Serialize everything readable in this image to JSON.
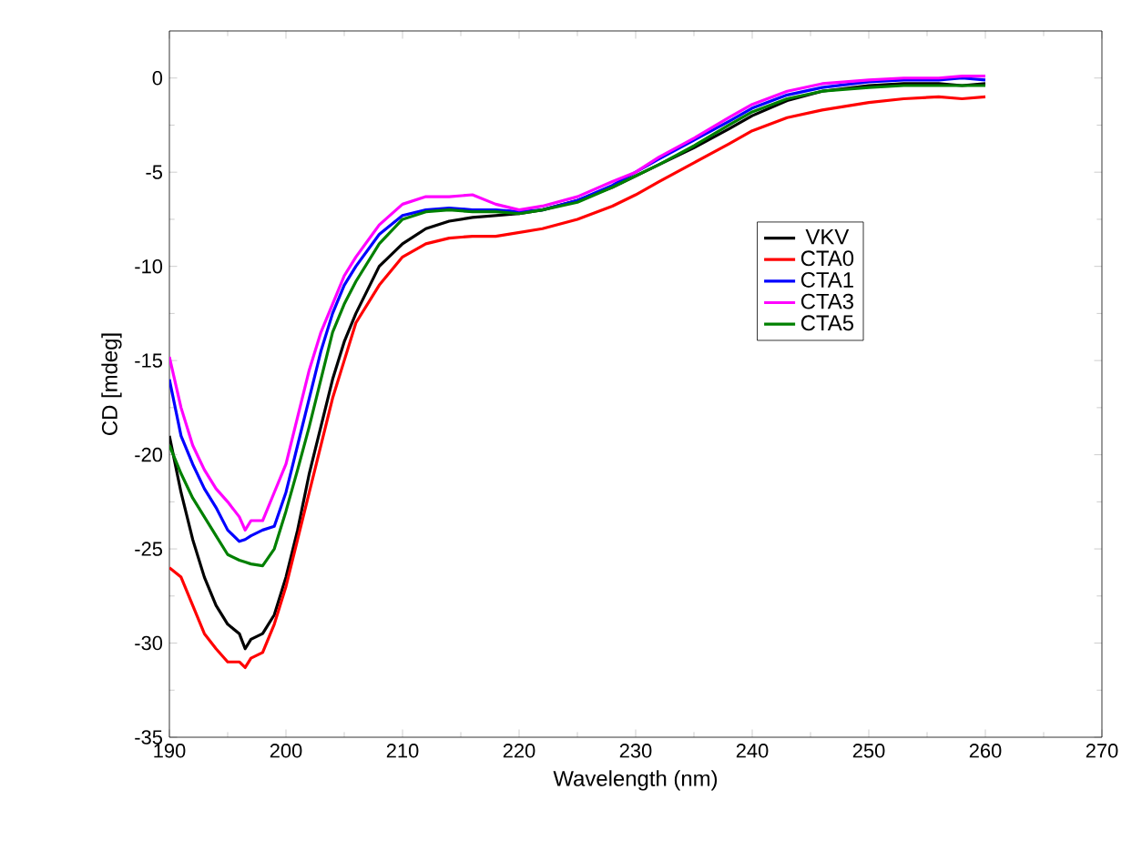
{
  "chart_data": {
    "type": "line",
    "xlabel": "Wavelength (nm)",
    "ylabel": "CD [mdeg]",
    "xlim": [
      190,
      270
    ],
    "ylim": [
      -35,
      2.5
    ],
    "xticks": [
      190,
      200,
      210,
      220,
      230,
      240,
      250,
      260,
      270
    ],
    "yticks": [
      -35,
      -30,
      -25,
      -20,
      -15,
      -10,
      -5,
      0
    ],
    "grid": false,
    "legend": "right",
    "marker": "none",
    "line_style": "solid",
    "x": [
      190,
      191,
      192,
      193,
      194,
      195,
      196,
      196.5,
      197,
      198,
      199,
      200,
      201,
      202,
      203,
      204,
      205,
      206,
      208,
      210,
      212,
      214,
      216,
      218,
      220,
      222,
      225,
      228,
      230,
      232,
      235,
      238,
      240,
      243,
      246,
      250,
      253,
      256,
      258,
      260
    ],
    "series": [
      {
        "name": "VKV",
        "color": "#000000",
        "values": [
          -19,
          -22,
          -24.5,
          -26.5,
          -28,
          -29,
          -29.5,
          -30.3,
          -29.8,
          -29.5,
          -28.5,
          -26.5,
          -24,
          -21,
          -18.5,
          -16,
          -14,
          -12.5,
          -10,
          -8.8,
          -8,
          -7.6,
          -7.4,
          -7.3,
          -7.2,
          -7,
          -6.5,
          -5.8,
          -5.2,
          -4.6,
          -3.7,
          -2.7,
          -2,
          -1.2,
          -0.7,
          -0.4,
          -0.3,
          -0.3,
          -0.4,
          -0.3
        ]
      },
      {
        "name": "CTA0",
        "color": "#ff0000",
        "values": [
          -26,
          -26.5,
          -28,
          -29.5,
          -30.3,
          -31,
          -31,
          -31.3,
          -30.8,
          -30.5,
          -29,
          -27,
          -24.5,
          -22,
          -19.5,
          -17,
          -15,
          -13,
          -11,
          -9.5,
          -8.8,
          -8.5,
          -8.4,
          -8.4,
          -8.2,
          -8,
          -7.5,
          -6.8,
          -6.2,
          -5.5,
          -4.5,
          -3.5,
          -2.8,
          -2.1,
          -1.7,
          -1.3,
          -1.1,
          -1,
          -1.1,
          -1
        ]
      },
      {
        "name": "CTA1",
        "color": "#0000ff",
        "values": [
          -16,
          -19,
          -20.5,
          -21.8,
          -22.8,
          -24,
          -24.6,
          -24.5,
          -24.3,
          -24,
          -23.8,
          -22,
          -19.5,
          -17,
          -14.5,
          -12.5,
          -11,
          -10,
          -8.3,
          -7.3,
          -7,
          -6.9,
          -7,
          -7,
          -7.1,
          -7,
          -6.5,
          -5.7,
          -5,
          -4.3,
          -3.3,
          -2.3,
          -1.6,
          -0.9,
          -0.5,
          -0.2,
          -0.1,
          -0.1,
          0,
          -0.1
        ]
      },
      {
        "name": "CTA3",
        "color": "#ff00ff",
        "values": [
          -14.8,
          -17.5,
          -19.5,
          -20.8,
          -21.8,
          -22.5,
          -23.3,
          -24,
          -23.5,
          -23.5,
          -22,
          -20.5,
          -18,
          -15.5,
          -13.5,
          -12,
          -10.5,
          -9.5,
          -7.8,
          -6.7,
          -6.3,
          -6.3,
          -6.2,
          -6.7,
          -7,
          -6.8,
          -6.3,
          -5.5,
          -5,
          -4.2,
          -3.2,
          -2.1,
          -1.4,
          -0.7,
          -0.3,
          -0.1,
          0,
          0,
          0.1,
          0.1
        ]
      },
      {
        "name": "CTA5",
        "color": "#008000",
        "values": [
          -19.5,
          -21,
          -22.3,
          -23.3,
          -24.3,
          -25.3,
          -25.6,
          -25.7,
          -25.8,
          -25.9,
          -25,
          -23,
          -20.8,
          -18.5,
          -16,
          -13.5,
          -12,
          -10.8,
          -8.8,
          -7.5,
          -7.1,
          -7,
          -7.1,
          -7.1,
          -7.2,
          -7,
          -6.6,
          -5.8,
          -5.2,
          -4.6,
          -3.6,
          -2.5,
          -1.8,
          -1.1,
          -0.7,
          -0.5,
          -0.4,
          -0.4,
          -0.4,
          -0.4
        ]
      }
    ]
  }
}
